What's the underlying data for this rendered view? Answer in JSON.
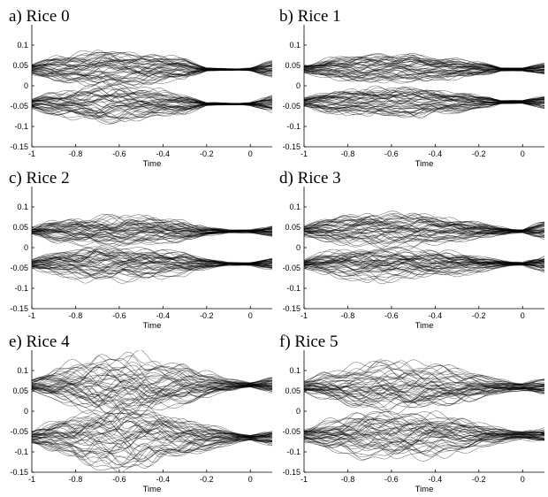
{
  "chart_data": [
    {
      "type": "line",
      "title": "a) Rice 0",
      "xlabel": "Time",
      "ylabel": "",
      "xlim": [
        -1,
        0.1
      ],
      "ylim": [
        -0.15,
        0.15
      ],
      "x_ticks": [
        -1,
        -0.8,
        -0.6,
        -0.4,
        -0.2,
        0
      ],
      "y_ticks": [
        -0.15,
        -0.1,
        -0.05,
        0,
        0.05,
        0.1
      ],
      "x_tick_labels": [
        "-1",
        "-0.8",
        "-0.6",
        "-0.4",
        "-0.2",
        "0"
      ],
      "y_tick_labels": [
        "-0.15",
        "-0.1",
        "-0.05",
        "0",
        "0.05",
        "0.1"
      ],
      "bands": [
        {
          "center": 0.04,
          "spread": [
            [
              -1,
              0.012
            ],
            [
              -0.9,
              0.03
            ],
            [
              -0.7,
              0.045
            ],
            [
              -0.5,
              0.04
            ],
            [
              -0.3,
              0.025
            ],
            [
              -0.2,
              0.004
            ],
            [
              -0.05,
              0.002
            ],
            [
              0,
              0.004
            ],
            [
              0.1,
              0.02
            ]
          ]
        },
        {
          "center": -0.045,
          "spread": [
            [
              -1,
              0.012
            ],
            [
              -0.9,
              0.03
            ],
            [
              -0.7,
              0.05
            ],
            [
              -0.5,
              0.04
            ],
            [
              -0.3,
              0.025
            ],
            [
              -0.2,
              0.004
            ],
            [
              -0.05,
              0.002
            ],
            [
              0,
              0.004
            ],
            [
              0.1,
              0.02
            ]
          ]
        }
      ]
    },
    {
      "type": "line",
      "title": "b) Rice 1",
      "xlabel": "Time",
      "ylabel": "",
      "xlim": [
        -1,
        0.1
      ],
      "ylim": [
        -0.15,
        0.15
      ],
      "x_ticks": [
        -1,
        -0.8,
        -0.6,
        -0.4,
        -0.2,
        0
      ],
      "y_ticks": [
        -0.15,
        -0.1,
        -0.05,
        0,
        0.05,
        0.1
      ],
      "x_tick_labels": [
        "-1",
        "-0.8",
        "-0.6",
        "-0.4",
        "-0.2",
        "0"
      ],
      "y_tick_labels": [
        "-0.15",
        "-0.1",
        "-0.05",
        "0",
        "0.05",
        "0.1"
      ],
      "bands": [
        {
          "center": 0.04,
          "spread": [
            [
              -1,
              0.01
            ],
            [
              -0.9,
              0.025
            ],
            [
              -0.7,
              0.035
            ],
            [
              -0.5,
              0.035
            ],
            [
              -0.3,
              0.025
            ],
            [
              -0.15,
              0.012
            ],
            [
              -0.1,
              0.004
            ],
            [
              0,
              0.004
            ],
            [
              0.1,
              0.015
            ]
          ]
        },
        {
          "center": -0.04,
          "spread": [
            [
              -1,
              0.01
            ],
            [
              -0.9,
              0.025
            ],
            [
              -0.7,
              0.035
            ],
            [
              -0.5,
              0.035
            ],
            [
              -0.3,
              0.025
            ],
            [
              -0.15,
              0.012
            ],
            [
              -0.1,
              0.004
            ],
            [
              0,
              0.004
            ],
            [
              0.1,
              0.015
            ]
          ]
        }
      ]
    },
    {
      "type": "line",
      "title": "c) Rice 2",
      "xlabel": "Time",
      "ylabel": "",
      "xlim": [
        -1,
        0.1
      ],
      "ylim": [
        -0.15,
        0.15
      ],
      "x_ticks": [
        -1,
        -0.8,
        -0.6,
        -0.4,
        -0.2,
        0
      ],
      "y_ticks": [
        -0.15,
        -0.1,
        -0.05,
        0,
        0.05,
        0.1
      ],
      "x_tick_labels": [
        "-1",
        "-0.8",
        "-0.6",
        "-0.4",
        "-0.2",
        "0"
      ],
      "y_tick_labels": [
        "-0.15",
        "-0.1",
        "-0.05",
        "0",
        "0.05",
        "0.1"
      ],
      "bands": [
        {
          "center": 0.04,
          "spread": [
            [
              -1,
              0.01
            ],
            [
              -0.9,
              0.028
            ],
            [
              -0.7,
              0.04
            ],
            [
              -0.5,
              0.04
            ],
            [
              -0.3,
              0.028
            ],
            [
              -0.2,
              0.012
            ],
            [
              -0.1,
              0.004
            ],
            [
              0,
              0.004
            ],
            [
              0.1,
              0.015
            ]
          ]
        },
        {
          "center": -0.04,
          "spread": [
            [
              -1,
              0.01
            ],
            [
              -0.9,
              0.028
            ],
            [
              -0.7,
              0.045
            ],
            [
              -0.5,
              0.04
            ],
            [
              -0.3,
              0.028
            ],
            [
              -0.2,
              0.012
            ],
            [
              -0.1,
              0.004
            ],
            [
              0,
              0.004
            ],
            [
              0.1,
              0.015
            ]
          ]
        }
      ]
    },
    {
      "type": "line",
      "title": "d) Rice 3",
      "xlabel": "Time",
      "ylabel": "",
      "xlim": [
        -1,
        0.1
      ],
      "ylim": [
        -0.15,
        0.15
      ],
      "x_ticks": [
        -1,
        -0.8,
        -0.6,
        -0.4,
        -0.2,
        0
      ],
      "y_ticks": [
        -0.15,
        -0.1,
        -0.05,
        0,
        0.05,
        0.1
      ],
      "x_tick_labels": [
        "-1",
        "-0.8",
        "-0.6",
        "-0.4",
        "-0.2",
        "0"
      ],
      "y_tick_labels": [
        "-0.15",
        "-0.1",
        "-0.05",
        "0",
        "0.05",
        "0.1"
      ],
      "bands": [
        {
          "center": 0.04,
          "spread": [
            [
              -1,
              0.012
            ],
            [
              -0.9,
              0.03
            ],
            [
              -0.7,
              0.045
            ],
            [
              -0.5,
              0.04
            ],
            [
              -0.3,
              0.03
            ],
            [
              -0.15,
              0.015
            ],
            [
              -0.05,
              0.005
            ],
            [
              0,
              0.004
            ],
            [
              0.1,
              0.025
            ]
          ]
        },
        {
          "center": -0.04,
          "spread": [
            [
              -1,
              0.012
            ],
            [
              -0.9,
              0.03
            ],
            [
              -0.7,
              0.045
            ],
            [
              -0.5,
              0.04
            ],
            [
              -0.3,
              0.03
            ],
            [
              -0.15,
              0.015
            ],
            [
              -0.05,
              0.005
            ],
            [
              0,
              0.004
            ],
            [
              0.1,
              0.025
            ]
          ]
        }
      ]
    },
    {
      "type": "line",
      "title": "e) Rice 4",
      "xlabel": "Time",
      "ylabel": "",
      "xlim": [
        -1,
        0.1
      ],
      "ylim": [
        -0.15,
        0.15
      ],
      "x_ticks": [
        -1,
        -0.8,
        -0.6,
        -0.4,
        -0.2,
        0
      ],
      "y_ticks": [
        -0.15,
        -0.1,
        -0.05,
        0,
        0.05,
        0.1
      ],
      "x_tick_labels": [
        "-1",
        "-0.8",
        "-0.6",
        "-0.4",
        "-0.2",
        "0"
      ],
      "y_tick_labels": [
        "-0.15",
        "-0.1",
        "-0.05",
        "0",
        "0.05",
        "0.1"
      ],
      "bands": [
        {
          "center": 0.065,
          "spread": [
            [
              -1,
              0.015
            ],
            [
              -0.9,
              0.04
            ],
            [
              -0.7,
              0.075
            ],
            [
              -0.5,
              0.075
            ],
            [
              -0.3,
              0.05
            ],
            [
              -0.15,
              0.025
            ],
            [
              -0.05,
              0.01
            ],
            [
              0,
              0.006
            ],
            [
              0.1,
              0.02
            ]
          ]
        },
        {
          "center": -0.065,
          "spread": [
            [
              -1,
              0.015
            ],
            [
              -0.9,
              0.04
            ],
            [
              -0.7,
              0.075
            ],
            [
              -0.5,
              0.075
            ],
            [
              -0.3,
              0.05
            ],
            [
              -0.15,
              0.025
            ],
            [
              -0.05,
              0.01
            ],
            [
              0,
              0.006
            ],
            [
              0.1,
              0.02
            ]
          ]
        }
      ]
    },
    {
      "type": "line",
      "title": "f) Rice 5",
      "xlabel": "Time",
      "ylabel": "",
      "xlim": [
        -1,
        0.1
      ],
      "ylim": [
        -0.15,
        0.15
      ],
      "x_ticks": [
        -1,
        -0.8,
        -0.6,
        -0.4,
        -0.2,
        0
      ],
      "y_ticks": [
        -0.15,
        -0.1,
        -0.05,
        0,
        0.05,
        0.1
      ],
      "x_tick_labels": [
        "-1",
        "-0.8",
        "-0.6",
        "-0.4",
        "-0.2",
        "0"
      ],
      "y_tick_labels": [
        "-0.15",
        "-0.1",
        "-0.05",
        "0",
        "0.05",
        "0.1"
      ],
      "bands": [
        {
          "center": 0.06,
          "spread": [
            [
              -1,
              0.015
            ],
            [
              -0.9,
              0.035
            ],
            [
              -0.7,
              0.06
            ],
            [
              -0.5,
              0.06
            ],
            [
              -0.3,
              0.045
            ],
            [
              -0.15,
              0.025
            ],
            [
              -0.05,
              0.012
            ],
            [
              0,
              0.01
            ],
            [
              0.1,
              0.018
            ]
          ]
        },
        {
          "center": -0.06,
          "spread": [
            [
              -1,
              0.015
            ],
            [
              -0.9,
              0.035
            ],
            [
              -0.7,
              0.06
            ],
            [
              -0.5,
              0.06
            ],
            [
              -0.3,
              0.045
            ],
            [
              -0.15,
              0.025
            ],
            [
              -0.05,
              0.012
            ],
            [
              0,
              0.01
            ],
            [
              0.1,
              0.018
            ]
          ]
        }
      ]
    }
  ]
}
